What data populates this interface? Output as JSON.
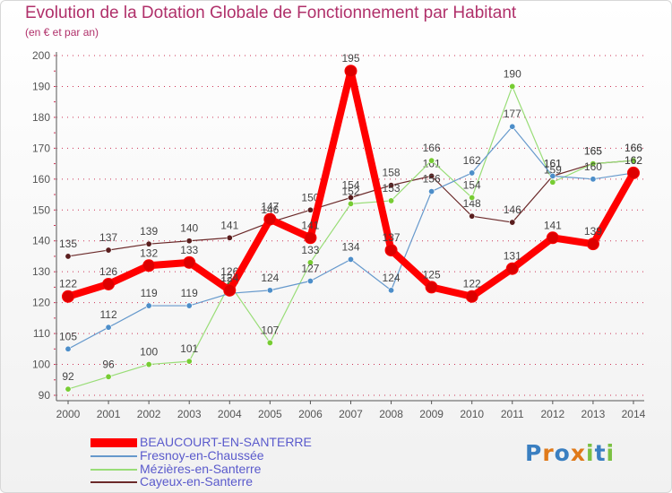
{
  "header": {
    "title": "Evolution de la Dotation Globale de Fonctionnement par Habitant",
    "subtitle": "(en € et par an)"
  },
  "logo": {
    "text": "Proxiti"
  },
  "colors": {
    "title": "#b0306a",
    "axis": "#555555",
    "grid": "#cc3355",
    "legend_text": "#5a5acc"
  },
  "chart_data": {
    "type": "line",
    "title": "Evolution de la Dotation Globale de Fonctionnement par Habitant",
    "subtitle": "(en € et par an)",
    "xlabel": "",
    "ylabel": "",
    "ylim": [
      90,
      200
    ],
    "yticks": [
      90,
      100,
      110,
      120,
      130,
      140,
      150,
      160,
      170,
      180,
      190,
      200
    ],
    "grid": "horizontal dotted",
    "legend_position": "bottom-left",
    "categories": [
      "2000",
      "2001",
      "2002",
      "2003",
      "2004",
      "2005",
      "2006",
      "2007",
      "2008",
      "2009",
      "2010",
      "2011",
      "2012",
      "2013",
      "2014"
    ],
    "series": [
      {
        "name": "Cayeux-en-Santerre",
        "color": "#6b2a2a",
        "dot": "#5a1e1e",
        "values": [
          135,
          137,
          139,
          140,
          141,
          146,
          150,
          154,
          158,
          161,
          148,
          146,
          161,
          165,
          166
        ],
        "labels": [
          "135",
          "137",
          "139",
          "140",
          "141",
          "146",
          "150",
          "154",
          "158",
          "161",
          "148",
          "146",
          "161",
          "165",
          "166"
        ]
      },
      {
        "name": "Mézières-en-Santerre",
        "color": "#99dd77",
        "dot": "#77cc33",
        "values": [
          92,
          96,
          100,
          101,
          126,
          107,
          133,
          152,
          153,
          166,
          154,
          190,
          159,
          165,
          166
        ],
        "labels": [
          "92",
          "96",
          "100",
          "101",
          "126",
          "107",
          "133",
          "152",
          "153",
          "166",
          "154",
          "190",
          "159",
          "165",
          "166"
        ]
      },
      {
        "name": "Fresnoy-en-Chaussée",
        "color": "#6699cc",
        "dot": "#4d8ec9",
        "values": [
          105,
          112,
          119,
          119,
          123,
          124,
          127,
          134,
          124,
          156,
          162,
          177,
          161,
          160,
          162
        ],
        "labels": [
          "105",
          "112",
          "119",
          "119",
          "123",
          "124",
          "127",
          "134",
          "124",
          "156",
          "162",
          "177",
          "161",
          "160",
          "162"
        ]
      },
      {
        "name": "BEAUCOURT-EN-SANTERRE",
        "color": "#ff0000",
        "dot": "#dd0000",
        "values": [
          122,
          126,
          132,
          133,
          124,
          147,
          141,
          195,
          137,
          125,
          122,
          131,
          141,
          139,
          162
        ],
        "labels": [
          "122",
          "126",
          "132",
          "133",
          "124",
          "147",
          "141",
          "195",
          "137",
          "125",
          "122",
          "131",
          "141",
          "139",
          "162"
        ]
      }
    ]
  }
}
